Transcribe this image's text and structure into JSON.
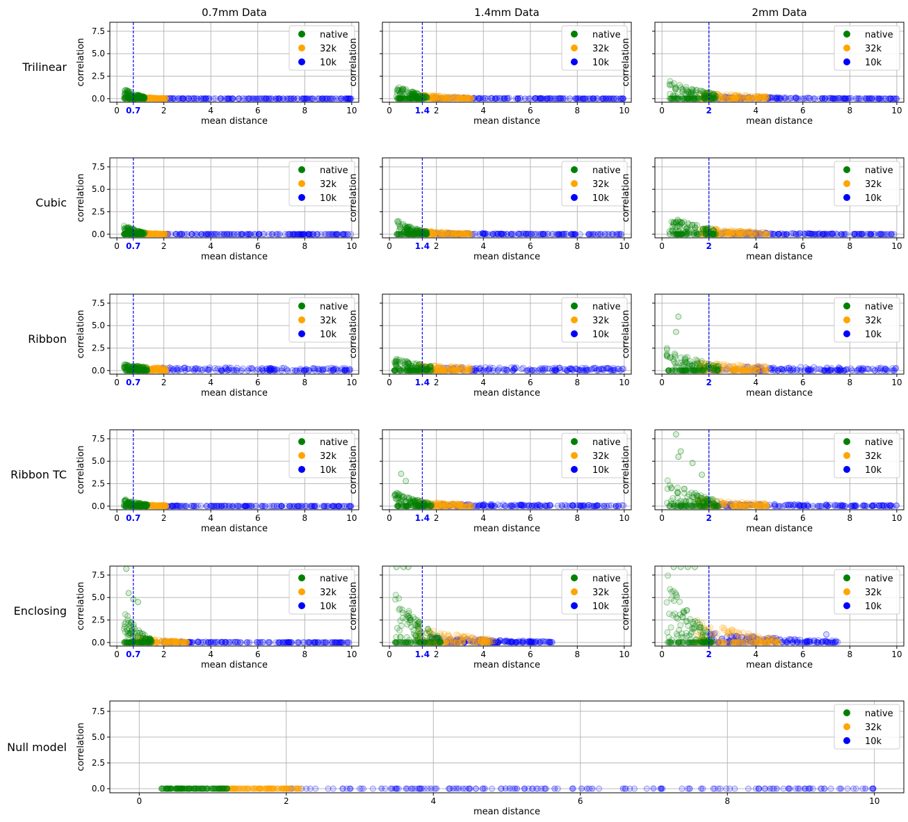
{
  "figure": {
    "column_titles": [
      "0.7mm Data",
      "1.4mm Data",
      "2mm Data"
    ],
    "row_labels": [
      "Trilinear",
      "Cubic",
      "Ribbon",
      "Ribbon TC",
      "Enclosing",
      "Null model"
    ]
  },
  "colors": {
    "native": "#008000",
    "32k": "#FFA500",
    "10k": "#0000FF",
    "threshold_line": "#0000FF",
    "grid": "#b0b0b0"
  },
  "chart_data": [
    {
      "type": "scatter",
      "row": "Trilinear",
      "column": "0.7mm Data",
      "xlabel": "mean distance",
      "ylabel": "correlation",
      "xlim": [
        -0.3,
        10.3
      ],
      "ylim": [
        -0.4,
        8.5
      ],
      "xticks": [
        0,
        2,
        4,
        6,
        8,
        10
      ],
      "yticks": [
        0.0,
        2.5,
        5.0,
        7.5
      ],
      "threshold": 0.7,
      "threshold_label": "0.7",
      "grid": true,
      "legend": "top-right",
      "series": [
        {
          "name": "native",
          "x_range": [
            0.3,
            1.2
          ],
          "y_start": 1.3,
          "y_end": 0.2,
          "outliers": []
        },
        {
          "name": "32k",
          "x_range": [
            0.9,
            2.1
          ],
          "y_start": 0.25,
          "y_end": 0.05,
          "outliers": []
        },
        {
          "name": "10k",
          "x_range": [
            1.9,
            10.0
          ],
          "y_start": 0.05,
          "y_end": 0.0,
          "outliers": []
        }
      ]
    },
    {
      "type": "scatter",
      "row": "Trilinear",
      "column": "1.4mm Data",
      "xlabel": "mean distance",
      "ylabel": "correlation",
      "xlim": [
        -0.3,
        10.3
      ],
      "ylim": [
        -0.4,
        8.5
      ],
      "xticks": [
        0,
        2,
        4,
        6,
        8,
        10
      ],
      "yticks": [
        0.0,
        2.5,
        5.0,
        7.5
      ],
      "threshold": 1.4,
      "threshold_label": "1.4",
      "grid": true,
      "legend": "top-right",
      "series": [
        {
          "name": "native",
          "x_range": [
            0.3,
            1.6
          ],
          "y_start": 1.8,
          "y_end": 0.3,
          "outliers": []
        },
        {
          "name": "32k",
          "x_range": [
            1.2,
            3.5
          ],
          "y_start": 0.55,
          "y_end": 0.15,
          "outliers": []
        },
        {
          "name": "10k",
          "x_range": [
            1.8,
            10.0
          ],
          "y_start": 0.2,
          "y_end": 0.0,
          "outliers": []
        }
      ]
    },
    {
      "type": "scatter",
      "row": "Trilinear",
      "column": "2mm Data",
      "xlabel": "mean distance",
      "ylabel": "correlation",
      "xlim": [
        -0.3,
        10.3
      ],
      "ylim": [
        -0.4,
        8.5
      ],
      "xticks": [
        0,
        2,
        4,
        6,
        8,
        10
      ],
      "yticks": [
        0.0,
        2.5,
        5.0,
        7.5
      ],
      "threshold": 2,
      "threshold_label": "2",
      "grid": true,
      "legend": "top-right",
      "series": [
        {
          "name": "native",
          "x_range": [
            0.3,
            2.3
          ],
          "y_start": 2.2,
          "y_end": 0.6,
          "outliers": []
        },
        {
          "name": "32k",
          "x_range": [
            1.6,
            4.5
          ],
          "y_start": 0.9,
          "y_end": 0.25,
          "outliers": []
        },
        {
          "name": "10k",
          "x_range": [
            2.0,
            10.0
          ],
          "y_start": 0.35,
          "y_end": 0.0,
          "outliers": []
        }
      ]
    },
    {
      "type": "scatter",
      "row": "Cubic",
      "column": "0.7mm Data",
      "xlabel": "mean distance",
      "ylabel": "correlation",
      "xlim": [
        -0.3,
        10.3
      ],
      "ylim": [
        -0.4,
        8.5
      ],
      "xticks": [
        0,
        2,
        4,
        6,
        8,
        10
      ],
      "yticks": [
        0.0,
        2.5,
        5.0,
        7.5
      ],
      "threshold": 0.7,
      "threshold_label": "0.7",
      "grid": true,
      "legend": "top-right",
      "series": [
        {
          "name": "native",
          "x_range": [
            0.3,
            1.2
          ],
          "y_start": 1.2,
          "y_end": 0.2,
          "outliers": []
        },
        {
          "name": "32k",
          "x_range": [
            0.9,
            2.1
          ],
          "y_start": 0.25,
          "y_end": 0.05,
          "outliers": []
        },
        {
          "name": "10k",
          "x_range": [
            1.9,
            10.0
          ],
          "y_start": 0.05,
          "y_end": 0.0,
          "outliers": []
        }
      ]
    },
    {
      "type": "scatter",
      "row": "Cubic",
      "column": "1.4mm Data",
      "xlabel": "mean distance",
      "ylabel": "correlation",
      "xlim": [
        -0.3,
        10.3
      ],
      "ylim": [
        -0.4,
        8.5
      ],
      "xticks": [
        0,
        2,
        4,
        6,
        8,
        10
      ],
      "yticks": [
        0.0,
        2.5,
        5.0,
        7.5
      ],
      "threshold": 1.4,
      "threshold_label": "1.4",
      "grid": true,
      "legend": "top-right",
      "series": [
        {
          "name": "native",
          "x_range": [
            0.3,
            1.6
          ],
          "y_start": 1.75,
          "y_end": 0.3,
          "outliers": []
        },
        {
          "name": "32k",
          "x_range": [
            1.2,
            3.5
          ],
          "y_start": 0.5,
          "y_end": 0.15,
          "outliers": []
        },
        {
          "name": "10k",
          "x_range": [
            1.8,
            10.0
          ],
          "y_start": 0.2,
          "y_end": 0.0,
          "outliers": []
        }
      ]
    },
    {
      "type": "scatter",
      "row": "Cubic",
      "column": "2mm Data",
      "xlabel": "mean distance",
      "ylabel": "correlation",
      "xlim": [
        -0.3,
        10.3
      ],
      "ylim": [
        -0.4,
        8.5
      ],
      "xticks": [
        0,
        2,
        4,
        6,
        8,
        10
      ],
      "yticks": [
        0.0,
        2.5,
        5.0,
        7.5
      ],
      "threshold": 2,
      "threshold_label": "2",
      "grid": true,
      "legend": "top-right",
      "series": [
        {
          "name": "native",
          "x_range": [
            0.3,
            2.3
          ],
          "y_start": 2.2,
          "y_end": 0.6,
          "outliers": []
        },
        {
          "name": "32k",
          "x_range": [
            1.6,
            4.5
          ],
          "y_start": 0.9,
          "y_end": 0.25,
          "outliers": []
        },
        {
          "name": "10k",
          "x_range": [
            2.0,
            10.0
          ],
          "y_start": 0.35,
          "y_end": 0.0,
          "outliers": []
        }
      ]
    },
    {
      "type": "scatter",
      "row": "Ribbon",
      "column": "0.7mm Data",
      "xlabel": "mean distance",
      "ylabel": "correlation",
      "xlim": [
        -0.3,
        10.3
      ],
      "ylim": [
        -0.4,
        8.5
      ],
      "xticks": [
        0,
        2,
        4,
        6,
        8,
        10
      ],
      "yticks": [
        0.0,
        2.5,
        5.0,
        7.5
      ],
      "threshold": 0.7,
      "threshold_label": "0.7",
      "grid": true,
      "legend": "top-right",
      "series": [
        {
          "name": "native",
          "x_range": [
            0.3,
            1.3
          ],
          "y_start": 0.8,
          "y_end": 0.4,
          "outliers": []
        },
        {
          "name": "32k",
          "x_range": [
            0.9,
            2.1
          ],
          "y_start": 0.45,
          "y_end": 0.3,
          "outliers": []
        },
        {
          "name": "10k",
          "x_range": [
            1.9,
            10.0
          ],
          "y_start": 0.35,
          "y_end": 0.3,
          "outliers": []
        }
      ]
    },
    {
      "type": "scatter",
      "row": "Ribbon",
      "column": "1.4mm Data",
      "xlabel": "mean distance",
      "ylabel": "correlation",
      "xlim": [
        -0.3,
        10.3
      ],
      "ylim": [
        -0.4,
        8.5
      ],
      "xticks": [
        0,
        2,
        4,
        6,
        8,
        10
      ],
      "yticks": [
        0.0,
        2.5,
        5.0,
        7.5
      ],
      "threshold": 1.4,
      "threshold_label": "1.4",
      "grid": true,
      "legend": "top-right",
      "series": [
        {
          "name": "native",
          "x_range": [
            0.2,
            1.8
          ],
          "y_start": 1.6,
          "y_end": 0.5,
          "outliers": []
        },
        {
          "name": "32k",
          "x_range": [
            1.2,
            3.5
          ],
          "y_start": 0.7,
          "y_end": 0.4,
          "outliers": []
        },
        {
          "name": "10k",
          "x_range": [
            1.8,
            10.0
          ],
          "y_start": 0.4,
          "y_end": 0.3,
          "outliers": []
        }
      ]
    },
    {
      "type": "scatter",
      "row": "Ribbon",
      "column": "2mm Data",
      "xlabel": "mean distance",
      "ylabel": "correlation",
      "xlim": [
        -0.3,
        10.3
      ],
      "ylim": [
        -0.4,
        8.5
      ],
      "xticks": [
        0,
        2,
        4,
        6,
        8,
        10
      ],
      "yticks": [
        0.0,
        2.5,
        5.0,
        7.5
      ],
      "threshold": 2,
      "threshold_label": "2",
      "grid": true,
      "legend": "top-right",
      "series": [
        {
          "name": "native",
          "x_range": [
            0.2,
            2.4
          ],
          "y_start": 2.8,
          "y_end": 0.6,
          "outliers": [
            [
              0.7,
              6.0
            ],
            [
              0.6,
              4.3
            ]
          ]
        },
        {
          "name": "32k",
          "x_range": [
            1.5,
            4.5
          ],
          "y_start": 1.0,
          "y_end": 0.5,
          "outliers": []
        },
        {
          "name": "10k",
          "x_range": [
            2.0,
            10.0
          ],
          "y_start": 0.5,
          "y_end": 0.35,
          "outliers": []
        }
      ]
    },
    {
      "type": "scatter",
      "row": "Ribbon TC",
      "column": "0.7mm Data",
      "xlabel": "mean distance",
      "ylabel": "correlation",
      "xlim": [
        -0.3,
        10.3
      ],
      "ylim": [
        -0.4,
        8.5
      ],
      "xticks": [
        0,
        2,
        4,
        6,
        8,
        10
      ],
      "yticks": [
        0.0,
        2.5,
        5.0,
        7.5
      ],
      "threshold": 0.7,
      "threshold_label": "0.7",
      "grid": true,
      "legend": "top-right",
      "series": [
        {
          "name": "native",
          "x_range": [
            0.3,
            1.3
          ],
          "y_start": 0.9,
          "y_end": 0.2,
          "outliers": []
        },
        {
          "name": "32k",
          "x_range": [
            0.9,
            2.1
          ],
          "y_start": 0.3,
          "y_end": 0.1,
          "outliers": []
        },
        {
          "name": "10k",
          "x_range": [
            1.9,
            10.0
          ],
          "y_start": 0.1,
          "y_end": 0.0,
          "outliers": []
        }
      ]
    },
    {
      "type": "scatter",
      "row": "Ribbon TC",
      "column": "1.4mm Data",
      "xlabel": "mean distance",
      "ylabel": "correlation",
      "xlim": [
        -0.3,
        10.3
      ],
      "ylim": [
        -0.4,
        8.5
      ],
      "xticks": [
        0,
        2,
        4,
        6,
        8,
        10
      ],
      "yticks": [
        0.0,
        2.5,
        5.0,
        7.5
      ],
      "threshold": 1.4,
      "threshold_label": "1.4",
      "grid": true,
      "legend": "top-right",
      "series": [
        {
          "name": "native",
          "x_range": [
            0.2,
            1.8
          ],
          "y_start": 1.9,
          "y_end": 0.3,
          "outliers": [
            [
              0.5,
              3.6
            ],
            [
              0.7,
              2.8
            ]
          ]
        },
        {
          "name": "32k",
          "x_range": [
            1.2,
            3.5
          ],
          "y_start": 0.6,
          "y_end": 0.2,
          "outliers": []
        },
        {
          "name": "10k",
          "x_range": [
            1.8,
            10.0
          ],
          "y_start": 0.3,
          "y_end": 0.1,
          "outliers": []
        }
      ]
    },
    {
      "type": "scatter",
      "row": "Ribbon TC",
      "column": "2mm Data",
      "xlabel": "mean distance",
      "ylabel": "correlation",
      "xlim": [
        -0.3,
        10.3
      ],
      "ylim": [
        -0.4,
        8.5
      ],
      "xticks": [
        0,
        2,
        4,
        6,
        8,
        10
      ],
      "yticks": [
        0.0,
        2.5,
        5.0,
        7.5
      ],
      "threshold": 2,
      "threshold_label": "2",
      "grid": true,
      "legend": "top-right",
      "series": [
        {
          "name": "native",
          "x_range": [
            0.2,
            2.4
          ],
          "y_start": 3.5,
          "y_end": 0.6,
          "outliers": [
            [
              0.6,
              8.0
            ],
            [
              0.8,
              6.1
            ],
            [
              0.7,
              5.5
            ],
            [
              1.3,
              4.8
            ],
            [
              1.7,
              3.5
            ]
          ]
        },
        {
          "name": "32k",
          "x_range": [
            1.5,
            4.5
          ],
          "y_start": 1.0,
          "y_end": 0.3,
          "outliers": []
        },
        {
          "name": "10k",
          "x_range": [
            2.0,
            10.0
          ],
          "y_start": 0.4,
          "y_end": 0.1,
          "outliers": []
        }
      ]
    },
    {
      "type": "scatter",
      "row": "Enclosing",
      "column": "0.7mm Data",
      "xlabel": "mean distance",
      "ylabel": "correlation",
      "xlim": [
        -0.3,
        10.3
      ],
      "ylim": [
        -0.4,
        8.5
      ],
      "xticks": [
        0,
        2,
        4,
        6,
        8,
        10
      ],
      "yticks": [
        0.0,
        2.5,
        5.0,
        7.5
      ],
      "threshold": 0.7,
      "threshold_label": "0.7",
      "grid": true,
      "legend": "top-right",
      "series": [
        {
          "name": "native",
          "x_range": [
            0.3,
            1.5
          ],
          "y_start": 4.2,
          "y_end": 0.3,
          "outliers": [
            [
              0.4,
              8.2
            ],
            [
              0.5,
              5.5
            ],
            [
              0.7,
              4.8
            ],
            [
              0.9,
              4.5
            ]
          ]
        },
        {
          "name": "32k",
          "x_range": [
            0.9,
            3.0
          ],
          "y_start": 0.6,
          "y_end": 0.1,
          "outliers": []
        },
        {
          "name": "10k",
          "x_range": [
            1.9,
            10.0
          ],
          "y_start": 0.15,
          "y_end": 0.0,
          "outliers": []
        }
      ]
    },
    {
      "type": "scatter",
      "row": "Enclosing",
      "column": "1.4mm Data",
      "xlabel": "mean distance",
      "ylabel": "correlation",
      "xlim": [
        -0.3,
        10.3
      ],
      "ylim": [
        -0.4,
        8.5
      ],
      "xticks": [
        0,
        2,
        4,
        6,
        8,
        10
      ],
      "yticks": [
        0.0,
        2.5,
        5.0,
        7.5
      ],
      "threshold": 1.4,
      "threshold_label": "1.4",
      "grid": true,
      "legend": "top-right",
      "series": [
        {
          "name": "native",
          "x_range": [
            0.2,
            2.2
          ],
          "y_start": 6.5,
          "y_end": 0.5,
          "outliers": [
            [
              0.3,
              8.4
            ],
            [
              0.6,
              8.4
            ],
            [
              0.8,
              8.4
            ]
          ]
        },
        {
          "name": "32k",
          "x_range": [
            1.2,
            4.5
          ],
          "y_start": 2.0,
          "y_end": 0.3,
          "outliers": []
        },
        {
          "name": "10k",
          "x_range": [
            1.8,
            7.0
          ],
          "y_start": 0.7,
          "y_end": 0.1,
          "outliers": []
        }
      ]
    },
    {
      "type": "scatter",
      "row": "Enclosing",
      "column": "2mm Data",
      "xlabel": "mean distance",
      "ylabel": "correlation",
      "xlim": [
        -0.3,
        10.3
      ],
      "ylim": [
        -0.4,
        8.5
      ],
      "xticks": [
        0,
        2,
        4,
        6,
        8,
        10
      ],
      "yticks": [
        0.0,
        2.5,
        5.0,
        7.5
      ],
      "threshold": 2,
      "threshold_label": "2",
      "grid": true,
      "legend": "top-right",
      "series": [
        {
          "name": "native",
          "x_range": [
            0.2,
            2.2
          ],
          "y_start": 8.4,
          "y_end": 0.5,
          "outliers": [
            [
              0.5,
              8.4
            ],
            [
              0.8,
              8.4
            ],
            [
              1.1,
              8.4
            ],
            [
              1.4,
              8.4
            ]
          ]
        },
        {
          "name": "32k",
          "x_range": [
            1.4,
            5.0
          ],
          "y_start": 3.0,
          "y_end": 0.4,
          "outliers": []
        },
        {
          "name": "10k",
          "x_range": [
            2.0,
            7.5
          ],
          "y_start": 1.2,
          "y_end": 0.2,
          "outliers": [
            [
              7.0,
              0.9
            ]
          ]
        }
      ]
    },
    {
      "type": "scatter",
      "row": "Null model",
      "column": "",
      "xlabel": "mean distance",
      "ylabel": "correlation",
      "xlim": [
        -0.4,
        10.4
      ],
      "ylim": [
        -0.4,
        8.5
      ],
      "xticks": [
        0,
        2,
        4,
        6,
        8,
        10
      ],
      "yticks": [
        0.0,
        2.5,
        5.0,
        7.5
      ],
      "threshold": null,
      "threshold_label": "",
      "grid": true,
      "legend": "top-right",
      "series": [
        {
          "name": "native",
          "x_range": [
            0.3,
            1.2
          ],
          "y_start": 0.0,
          "y_end": 0.0,
          "outliers": []
        },
        {
          "name": "32k",
          "x_range": [
            1.1,
            2.2
          ],
          "y_start": 0.0,
          "y_end": 0.0,
          "outliers": []
        },
        {
          "name": "10k",
          "x_range": [
            2.0,
            10.0
          ],
          "y_start": 0.0,
          "y_end": 0.0,
          "outliers": []
        }
      ]
    }
  ]
}
